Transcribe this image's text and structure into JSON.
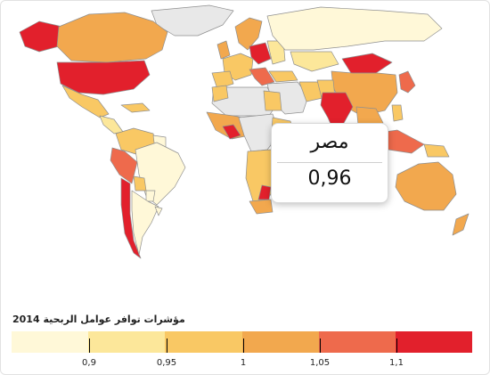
{
  "map": {
    "colors": {
      "no_data": "#e8e8e8",
      "c1": "#fff8d8",
      "c2": "#fce79a",
      "c3": "#f9c864",
      "c4": "#f2a84e",
      "c5": "#ee6a4c",
      "c6": "#e2202c",
      "ocean": "#ffffff"
    }
  },
  "tooltip": {
    "country": "مصر",
    "value": "0,96"
  },
  "legend": {
    "title": "مؤشرات توافر عوامل الربحية 2014",
    "colors": [
      "#fff8d8",
      "#fce79a",
      "#f9c864",
      "#f2a84e",
      "#ee6a4c",
      "#e2202c"
    ],
    "ticks": [
      "0,9",
      "0,95",
      "1",
      "1,05",
      "1,1"
    ]
  }
}
